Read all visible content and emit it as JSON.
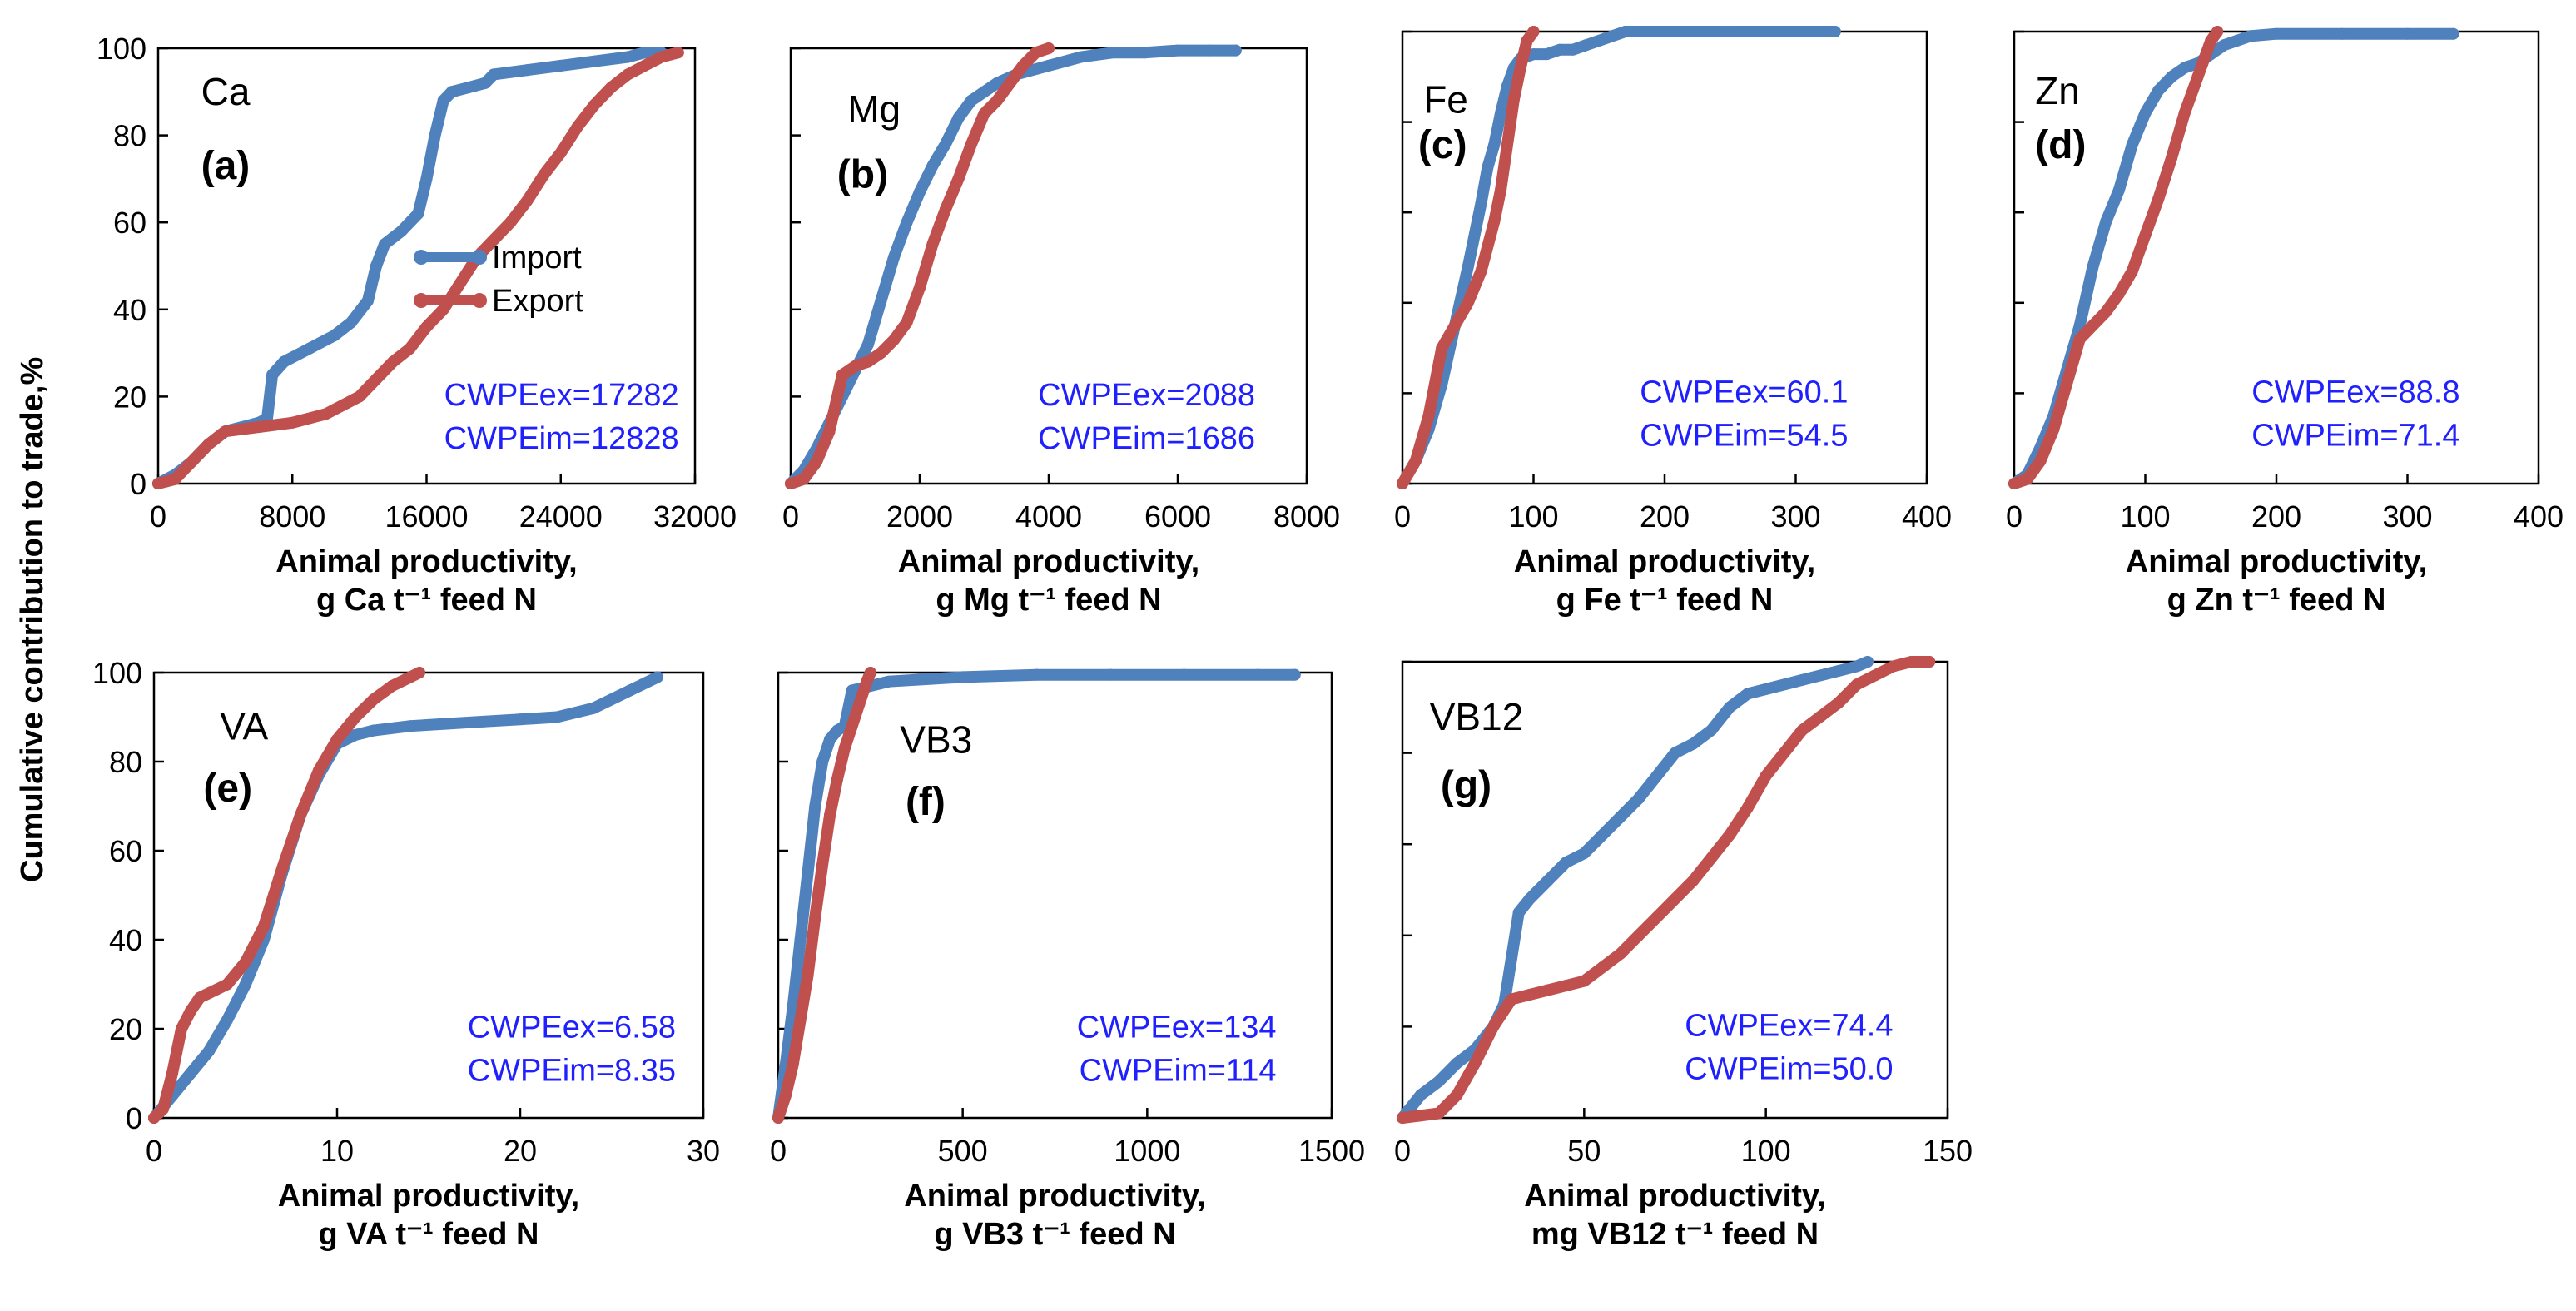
{
  "figure": {
    "ylabel": "Cumulative contribution to trade,%",
    "series_colors": {
      "import": "#4f81bd",
      "export": "#c0504d"
    },
    "legend": [
      {
        "name": "Import",
        "color": "#4f81bd"
      },
      {
        "name": "Export",
        "color": "#c0504d"
      }
    ]
  },
  "chart_data": [
    {
      "type": "line",
      "title": "Ca",
      "panel_label": "(a)",
      "xlabel_line1": "Animal productivity,",
      "xlabel_line2": "g Ca t⁻¹ feed N",
      "xlim": [
        0,
        32000
      ],
      "xticks": [
        "0",
        "8000",
        "16000",
        "24000",
        "32000"
      ],
      "ylim": [
        0,
        100
      ],
      "yticks": [
        "0",
        "20",
        "40",
        "60",
        "80",
        "100"
      ],
      "annotation1": "CWPEex=17282",
      "annotation2": "CWPEim=12828",
      "has_legend": true,
      "series": [
        {
          "name": "Import",
          "x": [
            0,
            1000,
            2000,
            3000,
            4000,
            5000,
            6000,
            6500,
            6800,
            7500,
            9000,
            10500,
            11500,
            12500,
            13000,
            13500,
            14500,
            15500,
            16000,
            16500,
            17000,
            17500,
            18500,
            19500,
            20000,
            22000,
            24000,
            26000,
            28000,
            29000,
            30000
          ],
          "y": [
            0,
            2,
            5,
            9,
            12,
            13,
            14,
            15,
            25,
            28,
            31,
            34,
            37,
            42,
            50,
            55,
            58,
            62,
            70,
            80,
            88,
            90,
            91,
            92,
            94,
            95,
            96,
            97,
            98,
            99,
            99
          ]
        },
        {
          "name": "Export",
          "x": [
            0,
            500,
            1000,
            1500,
            2000,
            3000,
            4000,
            6000,
            8000,
            10000,
            12000,
            13000,
            14000,
            15000,
            16000,
            17000,
            18000,
            19000,
            20000,
            21000,
            22000,
            23000,
            24000,
            25000,
            26000,
            27000,
            28000,
            29000,
            30000,
            31000
          ],
          "y": [
            0,
            0.5,
            1,
            3,
            5,
            9,
            12,
            13,
            14,
            16,
            20,
            24,
            28,
            31,
            36,
            40,
            46,
            52,
            56,
            60,
            65,
            71,
            76,
            82,
            87,
            91,
            94,
            96,
            98,
            99
          ]
        }
      ]
    },
    {
      "type": "line",
      "title": "Mg",
      "panel_label": "(b)",
      "xlabel_line1": "Animal productivity,",
      "xlabel_line2": "g Mg t⁻¹ feed N",
      "xlim": [
        0,
        8000
      ],
      "xticks": [
        "0",
        "2000",
        "4000",
        "6000",
        "8000"
      ],
      "ylim": [
        0,
        100
      ],
      "yticks": [],
      "annotation1": "CWPEex=2088",
      "annotation2": "CWPEim=1686",
      "has_legend": false,
      "series": [
        {
          "name": "Import",
          "x": [
            0,
            200,
            400,
            600,
            800,
            1000,
            1200,
            1400,
            1600,
            1800,
            2000,
            2200,
            2400,
            2600,
            2800,
            3000,
            3200,
            3500,
            4000,
            4500,
            5000,
            5500,
            6000,
            6500,
            6900
          ],
          "y": [
            0,
            3,
            8,
            14,
            20,
            26,
            32,
            42,
            52,
            60,
            67,
            73,
            78,
            84,
            88,
            90,
            92,
            94,
            96,
            98,
            99,
            99,
            99.5,
            99.5,
            99.5
          ]
        },
        {
          "name": "Export",
          "x": [
            0,
            200,
            400,
            600,
            800,
            1000,
            1200,
            1400,
            1600,
            1800,
            2000,
            2200,
            2400,
            2600,
            2800,
            3000,
            3200,
            3400,
            3600,
            3800,
            4000
          ],
          "y": [
            0,
            1,
            5,
            12,
            25,
            27,
            28,
            30,
            33,
            37,
            45,
            55,
            63,
            70,
            78,
            85,
            88,
            92,
            96,
            99,
            100
          ]
        }
      ]
    },
    {
      "type": "line",
      "title": "Fe",
      "panel_label": "(c)",
      "xlabel_line1": "Animal productivity,",
      "xlabel_line2": "g Fe t⁻¹ feed N",
      "xlim": [
        0,
        400
      ],
      "xticks": [
        "0",
        "100",
        "200",
        "300",
        "400"
      ],
      "ylim": [
        0,
        100
      ],
      "yticks": [],
      "annotation1": "CWPEex=60.1",
      "annotation2": "CWPEim=54.5",
      "has_legend": false,
      "series": [
        {
          "name": "Import",
          "x": [
            0,
            10,
            20,
            30,
            40,
            50,
            60,
            65,
            70,
            75,
            80,
            85,
            90,
            100,
            110,
            120,
            130,
            140,
            150,
            160,
            170,
            200,
            250,
            300,
            330
          ],
          "y": [
            0,
            5,
            12,
            22,
            35,
            48,
            62,
            70,
            75,
            82,
            88,
            92,
            94,
            95,
            95,
            96,
            96,
            97,
            98,
            99,
            100,
            100,
            100,
            100,
            100
          ]
        },
        {
          "name": "Export",
          "x": [
            0,
            10,
            20,
            30,
            40,
            50,
            60,
            70,
            75,
            80,
            85,
            90,
            95,
            100
          ],
          "y": [
            0,
            5,
            15,
            30,
            35,
            40,
            47,
            58,
            65,
            75,
            85,
            92,
            98,
            100
          ]
        }
      ]
    },
    {
      "type": "line",
      "title": "Zn",
      "panel_label": "(d)",
      "xlabel_line1": "Animal productivity,",
      "xlabel_line2": "g Zn t⁻¹ feed N",
      "xlim": [
        0,
        400
      ],
      "xticks": [
        "0",
        "100",
        "200",
        "300",
        "400"
      ],
      "ylim": [
        0,
        100
      ],
      "yticks": [],
      "annotation1": "CWPEex=88.8",
      "annotation2": "CWPEim=71.4",
      "has_legend": false,
      "series": [
        {
          "name": "Import",
          "x": [
            0,
            10,
            20,
            30,
            40,
            50,
            60,
            70,
            80,
            90,
            100,
            110,
            120,
            130,
            140,
            150,
            160,
            170,
            180,
            200,
            250,
            300,
            335
          ],
          "y": [
            0,
            2,
            8,
            15,
            25,
            35,
            48,
            58,
            65,
            75,
            82,
            87,
            90,
            92,
            93,
            95,
            97,
            98,
            99,
            99.5,
            99.5,
            99.5,
            99.5
          ]
        },
        {
          "name": "Export",
          "x": [
            0,
            10,
            20,
            30,
            40,
            50,
            60,
            70,
            80,
            90,
            100,
            110,
            120,
            130,
            140,
            150,
            155
          ],
          "y": [
            0,
            1,
            5,
            12,
            22,
            32,
            35,
            38,
            42,
            47,
            55,
            63,
            72,
            82,
            90,
            98,
            100
          ]
        }
      ]
    },
    {
      "type": "line",
      "title": "VA",
      "panel_label": "(e)",
      "xlabel_line1": "Animal productivity,",
      "xlabel_line2": "g VA t⁻¹ feed N",
      "xlim": [
        0,
        30
      ],
      "xticks": [
        "0",
        "10",
        "20",
        "30"
      ],
      "ylim": [
        0,
        100
      ],
      "yticks": [
        "0",
        "20",
        "40",
        "60",
        "80",
        "100"
      ],
      "annotation1": "CWPEex=6.58",
      "annotation2": "CWPEim=8.35",
      "has_legend": false,
      "series": [
        {
          "name": "Import",
          "x": [
            0,
            1,
            2,
            3,
            4,
            5,
            6,
            7,
            8,
            9,
            10,
            11,
            12,
            14,
            16,
            18,
            20,
            22,
            24,
            26,
            27.5
          ],
          "y": [
            0,
            5,
            10,
            15,
            22,
            30,
            40,
            55,
            68,
            77,
            84,
            86,
            87,
            88,
            88.5,
            89,
            89.5,
            90,
            92,
            96,
            99
          ]
        },
        {
          "name": "Export",
          "x": [
            0,
            0.5,
            1,
            1.5,
            2,
            2.5,
            3,
            4,
            5,
            6,
            7,
            8,
            9,
            10,
            11,
            12,
            13,
            14,
            14.5
          ],
          "y": [
            0,
            2,
            10,
            20,
            24,
            27,
            28,
            30,
            35,
            43,
            56,
            68,
            78,
            85,
            90,
            94,
            97,
            99,
            100
          ]
        }
      ]
    },
    {
      "type": "line",
      "title": "VB3",
      "panel_label": "(f)",
      "xlabel_line1": "Animal productivity,",
      "xlabel_line2": "g VB3 t⁻¹ feed N",
      "xlim": [
        0,
        1500
      ],
      "xticks": [
        "0",
        "500",
        "1000",
        "1500"
      ],
      "ylim": [
        0,
        100
      ],
      "yticks": [],
      "annotation1": "CWPEex=134",
      "annotation2": "CWPEim=114",
      "has_legend": false,
      "series": [
        {
          "name": "Import",
          "x": [
            0,
            20,
            40,
            60,
            80,
            100,
            120,
            140,
            160,
            180,
            200,
            250,
            300,
            400,
            500,
            700,
            900,
            1100,
            1300,
            1400
          ],
          "y": [
            0,
            12,
            25,
            40,
            55,
            70,
            80,
            85,
            87,
            88,
            96,
            97,
            98,
            98.5,
            99,
            99.5,
            99.5,
            99.5,
            99.5,
            99.5
          ]
        },
        {
          "name": "Export",
          "x": [
            0,
            20,
            40,
            60,
            80,
            100,
            120,
            140,
            160,
            180,
            200,
            220,
            240,
            250
          ],
          "y": [
            0,
            5,
            12,
            22,
            32,
            45,
            57,
            68,
            76,
            83,
            88,
            93,
            98,
            100
          ]
        }
      ]
    },
    {
      "type": "line",
      "title": "VB12",
      "panel_label": "(g)",
      "xlabel_line1": "Animal productivity,",
      "xlabel_line2": "mg VB12 t⁻¹ feed N",
      "xlim": [
        0,
        150
      ],
      "xticks": [
        "0",
        "50",
        "100",
        "150"
      ],
      "ylim": [
        0,
        100
      ],
      "yticks": [],
      "annotation1": "CWPEex=74.4",
      "annotation2": "CWPEim=50.0",
      "has_legend": false,
      "series": [
        {
          "name": "Import",
          "x": [
            0,
            5,
            10,
            15,
            20,
            25,
            28,
            30,
            32,
            35,
            40,
            45,
            50,
            55,
            60,
            65,
            70,
            75,
            80,
            85,
            90,
            95,
            100,
            110,
            120,
            125,
            128
          ],
          "y": [
            0,
            5,
            8,
            12,
            15,
            20,
            25,
            35,
            45,
            48,
            52,
            56,
            58,
            62,
            66,
            70,
            75,
            80,
            82,
            85,
            90,
            93,
            94,
            96,
            98,
            99,
            100
          ]
        },
        {
          "name": "Export",
          "x": [
            0,
            5,
            10,
            15,
            20,
            25,
            30,
            35,
            40,
            45,
            50,
            55,
            60,
            65,
            70,
            75,
            80,
            85,
            90,
            95,
            100,
            105,
            110,
            115,
            120,
            125,
            130,
            135,
            140,
            145
          ],
          "y": [
            0,
            0.5,
            1,
            5,
            12,
            20,
            26,
            27,
            28,
            29,
            30,
            33,
            36,
            40,
            44,
            48,
            52,
            57,
            62,
            68,
            75,
            80,
            85,
            88,
            91,
            95,
            97,
            99,
            100,
            100
          ]
        }
      ]
    }
  ]
}
